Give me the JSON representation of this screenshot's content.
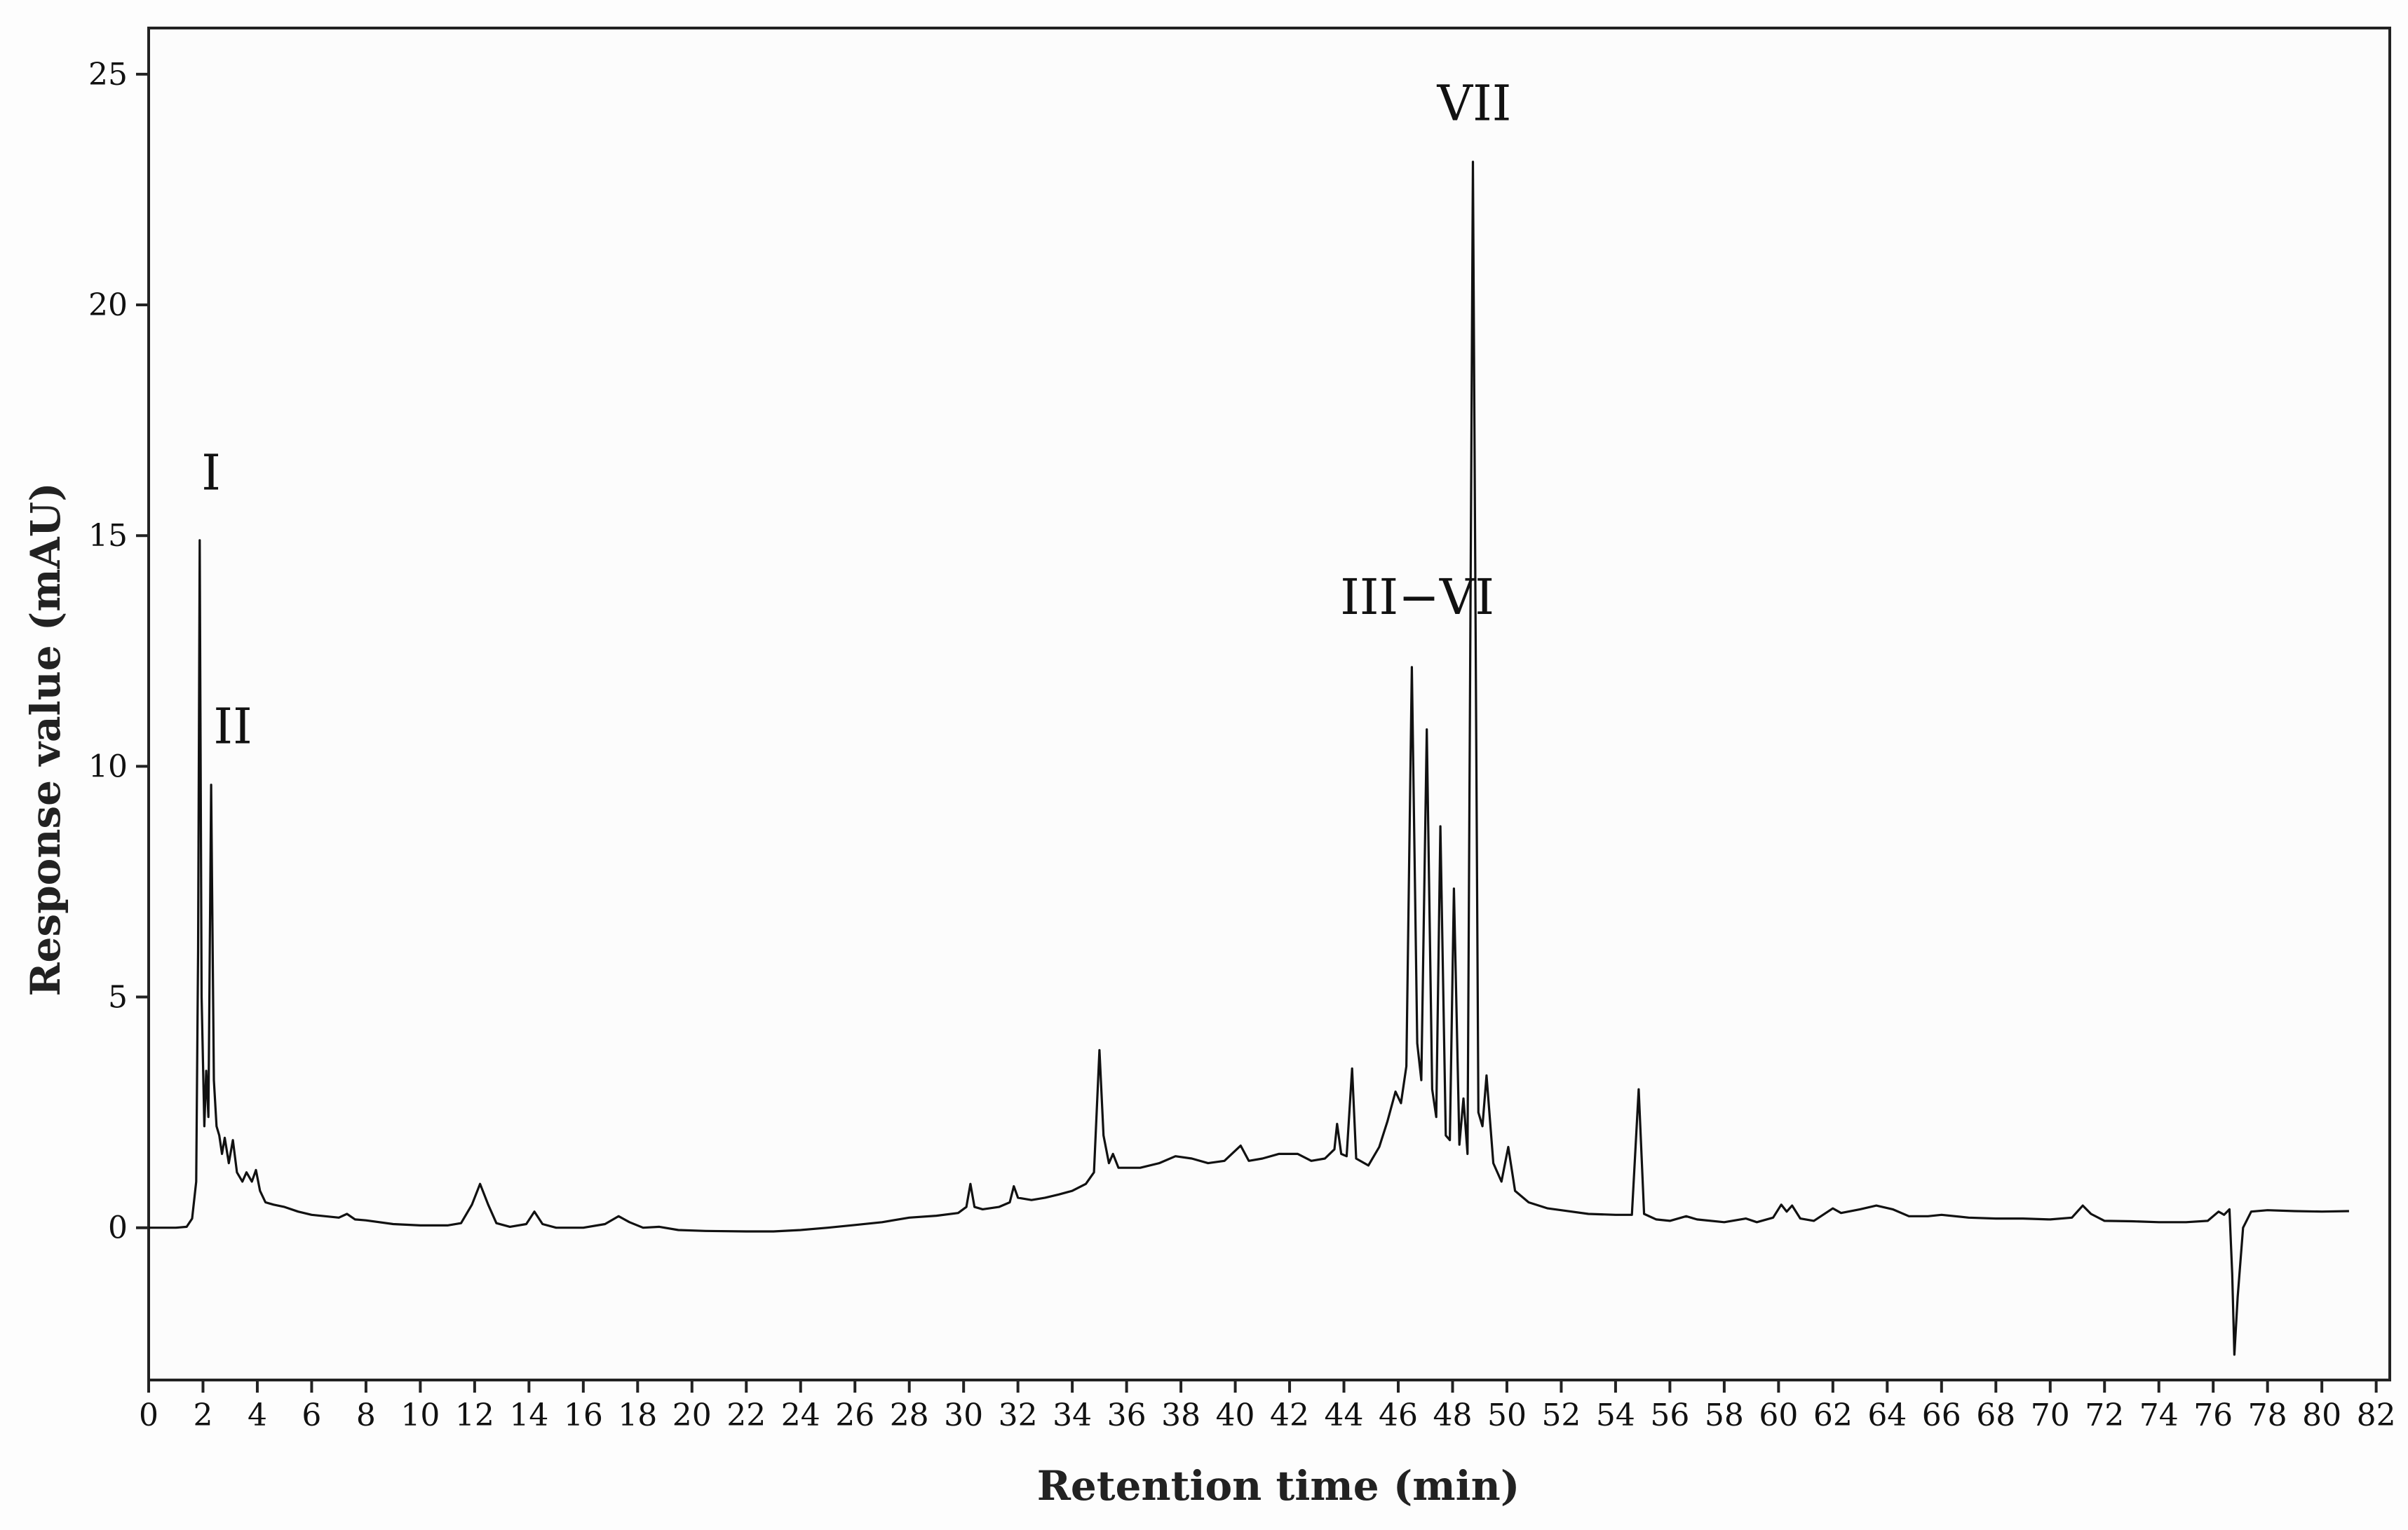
{
  "chart_data": {
    "type": "line",
    "title": "",
    "xlabel": "Retention time (min)",
    "ylabel": "Response value (mAU)",
    "xlim": [
      0,
      82.5
    ],
    "ylim": [
      -3.3,
      26
    ],
    "xticks": [
      0,
      2,
      4,
      6,
      8,
      10,
      12,
      14,
      16,
      18,
      20,
      22,
      24,
      26,
      28,
      30,
      32,
      34,
      36,
      38,
      40,
      42,
      44,
      46,
      48,
      50,
      52,
      54,
      56,
      58,
      60,
      62,
      64,
      66,
      68,
      70,
      72,
      74,
      76,
      78,
      80,
      82
    ],
    "yticks": [
      0,
      5,
      10,
      15,
      20,
      25
    ],
    "grid": false,
    "legend": "none",
    "line_color": "#111111",
    "annotations": [
      {
        "text": "I",
        "x": 2.3,
        "y": 16.0
      },
      {
        "text": "II",
        "x": 3.1,
        "y": 10.5
      },
      {
        "text": "III−VI",
        "x": 46.7,
        "y": 13.3
      },
      {
        "text": "VII",
        "x": 48.8,
        "y": 24.0
      }
    ],
    "series": [
      {
        "points": [
          [
            0,
            0
          ],
          [
            0.5,
            0
          ],
          [
            1.0,
            0
          ],
          [
            1.4,
            0.02
          ],
          [
            1.6,
            0.2
          ],
          [
            1.75,
            1.0
          ],
          [
            1.82,
            6
          ],
          [
            1.88,
            14.9
          ],
          [
            1.95,
            5
          ],
          [
            2.05,
            2.2
          ],
          [
            2.12,
            3.4
          ],
          [
            2.2,
            2.4
          ],
          [
            2.3,
            9.6
          ],
          [
            2.4,
            3.2
          ],
          [
            2.5,
            2.2
          ],
          [
            2.6,
            2.0
          ],
          [
            2.7,
            1.6
          ],
          [
            2.8,
            1.95
          ],
          [
            2.95,
            1.4
          ],
          [
            3.1,
            1.9
          ],
          [
            3.25,
            1.2
          ],
          [
            3.45,
            1.0
          ],
          [
            3.6,
            1.2
          ],
          [
            3.8,
            1.0
          ],
          [
            3.95,
            1.25
          ],
          [
            4.1,
            0.8
          ],
          [
            4.3,
            0.55
          ],
          [
            4.6,
            0.5
          ],
          [
            5.0,
            0.45
          ],
          [
            5.5,
            0.35
          ],
          [
            6.0,
            0.28
          ],
          [
            6.5,
            0.25
          ],
          [
            7.0,
            0.22
          ],
          [
            7.3,
            0.3
          ],
          [
            7.6,
            0.18
          ],
          [
            8.0,
            0.16
          ],
          [
            9.0,
            0.08
          ],
          [
            10.0,
            0.05
          ],
          [
            11.0,
            0.05
          ],
          [
            11.5,
            0.1
          ],
          [
            11.9,
            0.5
          ],
          [
            12.2,
            0.95
          ],
          [
            12.5,
            0.5
          ],
          [
            12.8,
            0.1
          ],
          [
            13.3,
            0.02
          ],
          [
            13.9,
            0.08
          ],
          [
            14.2,
            0.35
          ],
          [
            14.5,
            0.08
          ],
          [
            15.0,
            0
          ],
          [
            16.0,
            0
          ],
          [
            16.8,
            0.08
          ],
          [
            17.3,
            0.25
          ],
          [
            17.7,
            0.12
          ],
          [
            18.2,
            0
          ],
          [
            18.8,
            0.02
          ],
          [
            19.5,
            -0.05
          ],
          [
            20.5,
            -0.07
          ],
          [
            22,
            -0.08
          ],
          [
            23,
            -0.08
          ],
          [
            24,
            -0.05
          ],
          [
            25,
            0
          ],
          [
            26,
            0.06
          ],
          [
            27,
            0.12
          ],
          [
            28,
            0.22
          ],
          [
            29,
            0.26
          ],
          [
            29.8,
            0.32
          ],
          [
            30.1,
            0.45
          ],
          [
            30.25,
            0.95
          ],
          [
            30.4,
            0.45
          ],
          [
            30.7,
            0.4
          ],
          [
            31.3,
            0.45
          ],
          [
            31.7,
            0.55
          ],
          [
            31.85,
            0.9
          ],
          [
            32.0,
            0.65
          ],
          [
            32.5,
            0.6
          ],
          [
            33.0,
            0.65
          ],
          [
            33.5,
            0.72
          ],
          [
            34.0,
            0.8
          ],
          [
            34.5,
            0.95
          ],
          [
            34.8,
            1.2
          ],
          [
            35.0,
            3.85
          ],
          [
            35.15,
            2.0
          ],
          [
            35.35,
            1.4
          ],
          [
            35.5,
            1.6
          ],
          [
            35.7,
            1.3
          ],
          [
            36.5,
            1.3
          ],
          [
            37.2,
            1.4
          ],
          [
            37.8,
            1.55
          ],
          [
            38.4,
            1.5
          ],
          [
            39.0,
            1.4
          ],
          [
            39.6,
            1.45
          ],
          [
            40.2,
            1.78
          ],
          [
            40.5,
            1.45
          ],
          [
            41.0,
            1.5
          ],
          [
            41.6,
            1.6
          ],
          [
            42.3,
            1.6
          ],
          [
            42.8,
            1.45
          ],
          [
            43.3,
            1.5
          ],
          [
            43.65,
            1.7
          ],
          [
            43.75,
            2.25
          ],
          [
            43.9,
            1.6
          ],
          [
            44.1,
            1.55
          ],
          [
            44.3,
            3.45
          ],
          [
            44.45,
            1.5
          ],
          [
            44.9,
            1.35
          ],
          [
            45.3,
            1.75
          ],
          [
            45.6,
            2.3
          ],
          [
            45.9,
            2.95
          ],
          [
            46.1,
            2.7
          ],
          [
            46.3,
            3.5
          ],
          [
            46.5,
            12.15
          ],
          [
            46.7,
            4.0
          ],
          [
            46.85,
            3.2
          ],
          [
            47.05,
            10.8
          ],
          [
            47.25,
            3.0
          ],
          [
            47.4,
            2.4
          ],
          [
            47.55,
            8.7
          ],
          [
            47.75,
            2.0
          ],
          [
            47.9,
            1.9
          ],
          [
            48.05,
            7.35
          ],
          [
            48.25,
            1.8
          ],
          [
            48.4,
            2.8
          ],
          [
            48.55,
            1.6
          ],
          [
            48.75,
            23.1
          ],
          [
            48.95,
            2.5
          ],
          [
            49.1,
            2.2
          ],
          [
            49.25,
            3.3
          ],
          [
            49.5,
            1.4
          ],
          [
            49.8,
            1.0
          ],
          [
            50.05,
            1.75
          ],
          [
            50.3,
            0.8
          ],
          [
            50.8,
            0.55
          ],
          [
            51.5,
            0.42
          ],
          [
            52,
            0.38
          ],
          [
            53,
            0.3
          ],
          [
            54,
            0.28
          ],
          [
            54.6,
            0.28
          ],
          [
            54.85,
            3.0
          ],
          [
            55.05,
            0.3
          ],
          [
            55.5,
            0.18
          ],
          [
            56,
            0.15
          ],
          [
            56.6,
            0.25
          ],
          [
            57,
            0.18
          ],
          [
            58,
            0.12
          ],
          [
            58.8,
            0.2
          ],
          [
            59.2,
            0.12
          ],
          [
            59.8,
            0.22
          ],
          [
            60.1,
            0.5
          ],
          [
            60.3,
            0.35
          ],
          [
            60.5,
            0.48
          ],
          [
            60.8,
            0.2
          ],
          [
            61.3,
            0.15
          ],
          [
            62.0,
            0.42
          ],
          [
            62.3,
            0.32
          ],
          [
            63.0,
            0.4
          ],
          [
            63.6,
            0.48
          ],
          [
            64.2,
            0.4
          ],
          [
            64.8,
            0.25
          ],
          [
            65.5,
            0.25
          ],
          [
            66.0,
            0.28
          ],
          [
            67,
            0.22
          ],
          [
            68,
            0.2
          ],
          [
            69,
            0.2
          ],
          [
            70,
            0.18
          ],
          [
            70.8,
            0.22
          ],
          [
            71.2,
            0.48
          ],
          [
            71.5,
            0.3
          ],
          [
            72,
            0.15
          ],
          [
            73,
            0.14
          ],
          [
            74,
            0.12
          ],
          [
            75,
            0.12
          ],
          [
            75.8,
            0.15
          ],
          [
            76.2,
            0.35
          ],
          [
            76.4,
            0.28
          ],
          [
            76.6,
            0.4
          ],
          [
            76.7,
            -1.0
          ],
          [
            76.78,
            -2.75
          ],
          [
            76.9,
            -1.5
          ],
          [
            77.1,
            0.0
          ],
          [
            77.4,
            0.35
          ],
          [
            78,
            0.38
          ],
          [
            79,
            0.36
          ],
          [
            80,
            0.35
          ],
          [
            81,
            0.36
          ]
        ]
      }
    ]
  }
}
